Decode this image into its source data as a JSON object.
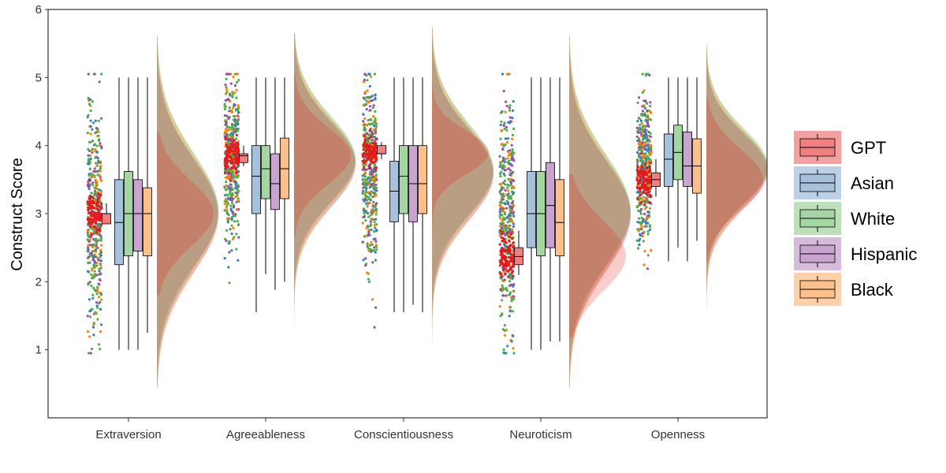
{
  "chart_data": {
    "type": "raincloud",
    "ylabel": "Construct Score",
    "xlabel": "",
    "title": "",
    "ylim": [
      0,
      6
    ],
    "yticks": [
      1,
      2,
      3,
      4,
      5,
      6
    ],
    "grid": false,
    "legend_position": "right",
    "categories": [
      "Extraversion",
      "Agreeableness",
      "Conscientiousness",
      "Neuroticism",
      "Openness"
    ],
    "series": [
      {
        "name": "GPT",
        "color": "#E41A1C",
        "box_fill": "#F08080",
        "boxes": [
          {
            "min": 2.85,
            "q1": 2.85,
            "median": 3.0,
            "q3": 3.0,
            "max": 3.15
          },
          {
            "min": 3.7,
            "q1": 3.75,
            "median": 3.85,
            "q3": 3.88,
            "max": 4.0
          },
          {
            "min": 3.8,
            "q1": 3.88,
            "median": 3.88,
            "q3": 4.0,
            "max": 4.05
          },
          {
            "min": 2.1,
            "q1": 2.25,
            "median": 2.37,
            "q3": 2.5,
            "max": 2.75
          },
          {
            "min": 3.25,
            "q1": 3.4,
            "median": 3.5,
            "q3": 3.6,
            "max": 3.8
          }
        ]
      },
      {
        "name": "Asian",
        "color": "#377EB8",
        "box_fill": "#A6C1DC",
        "boxes": [
          {
            "min": 1.0,
            "q1": 2.25,
            "median": 2.87,
            "q3": 3.5,
            "max": 5.0
          },
          {
            "min": 1.55,
            "q1": 3.0,
            "median": 3.55,
            "q3": 4.0,
            "max": 5.0
          },
          {
            "min": 1.55,
            "q1": 2.88,
            "median": 3.33,
            "q3": 3.77,
            "max": 5.0
          },
          {
            "min": 1.0,
            "q1": 2.5,
            "median": 3.0,
            "q3": 3.62,
            "max": 5.0
          },
          {
            "min": 2.3,
            "q1": 3.4,
            "median": 3.8,
            "q3": 4.17,
            "max": 5.0
          }
        ]
      },
      {
        "name": "White",
        "color": "#4DAF4A",
        "box_fill": "#A5D5A2",
        "boxes": [
          {
            "min": 1.0,
            "q1": 2.38,
            "median": 3.0,
            "q3": 3.62,
            "max": 5.0
          },
          {
            "min": 2.11,
            "q1": 3.22,
            "median": 3.66,
            "q3": 4.0,
            "max": 5.0
          },
          {
            "min": 1.55,
            "q1": 3.0,
            "median": 3.55,
            "q3": 4.0,
            "max": 5.0
          },
          {
            "min": 1.0,
            "q1": 2.38,
            "median": 3.0,
            "q3": 3.62,
            "max": 5.0
          },
          {
            "min": 2.5,
            "q1": 3.5,
            "median": 3.9,
            "q3": 4.3,
            "max": 5.0
          }
        ]
      },
      {
        "name": "Hispanic",
        "color": "#984EA3",
        "box_fill": "#C9A4CF",
        "boxes": [
          {
            "min": 1.0,
            "q1": 2.45,
            "median": 3.0,
            "q3": 3.5,
            "max": 5.0
          },
          {
            "min": 1.88,
            "q1": 3.06,
            "median": 3.44,
            "q3": 3.88,
            "max": 5.0
          },
          {
            "min": 1.66,
            "q1": 2.88,
            "median": 3.44,
            "q3": 4.0,
            "max": 5.0
          },
          {
            "min": 1.12,
            "q1": 2.5,
            "median": 3.12,
            "q3": 3.75,
            "max": 5.0
          },
          {
            "min": 2.3,
            "q1": 3.4,
            "median": 3.7,
            "q3": 4.2,
            "max": 5.0
          }
        ]
      },
      {
        "name": "Black",
        "color": "#FF7F00",
        "box_fill": "#FDC08A",
        "boxes": [
          {
            "min": 1.25,
            "q1": 2.38,
            "median": 3.0,
            "q3": 3.38,
            "max": 5.0
          },
          {
            "min": 2.0,
            "q1": 3.22,
            "median": 3.66,
            "q3": 4.11,
            "max": 5.0
          },
          {
            "min": 1.55,
            "q1": 3.0,
            "median": 3.44,
            "q3": 4.0,
            "max": 5.0
          },
          {
            "min": 1.12,
            "q1": 2.38,
            "median": 2.87,
            "q3": 3.5,
            "max": 5.0
          },
          {
            "min": 2.6,
            "q1": 3.3,
            "median": 3.7,
            "q3": 4.1,
            "max": 5.0
          }
        ]
      }
    ],
    "human_distribution": [
      {
        "mean": 3.0,
        "sd": 0.82,
        "min": 0.45,
        "max": 5.62
      },
      {
        "mean": 3.75,
        "sd": 0.62,
        "min": 0.82,
        "max": 5.65
      },
      {
        "mean": 3.6,
        "sd": 0.66,
        "min": 0.88,
        "max": 5.75
      },
      {
        "mean": 3.0,
        "sd": 0.8,
        "min": 0.45,
        "max": 5.62
      },
      {
        "mean": 3.65,
        "sd": 0.55,
        "min": 1.6,
        "max": 5.5
      }
    ],
    "gpt_distribution": [
      {
        "mean": 3.0,
        "sd": 0.15
      },
      {
        "mean": 3.85,
        "sd": 0.13
      },
      {
        "mean": 3.9,
        "sd": 0.1
      },
      {
        "mean": 2.38,
        "sd": 0.16
      },
      {
        "mean": 3.5,
        "sd": 0.14
      }
    ]
  }
}
